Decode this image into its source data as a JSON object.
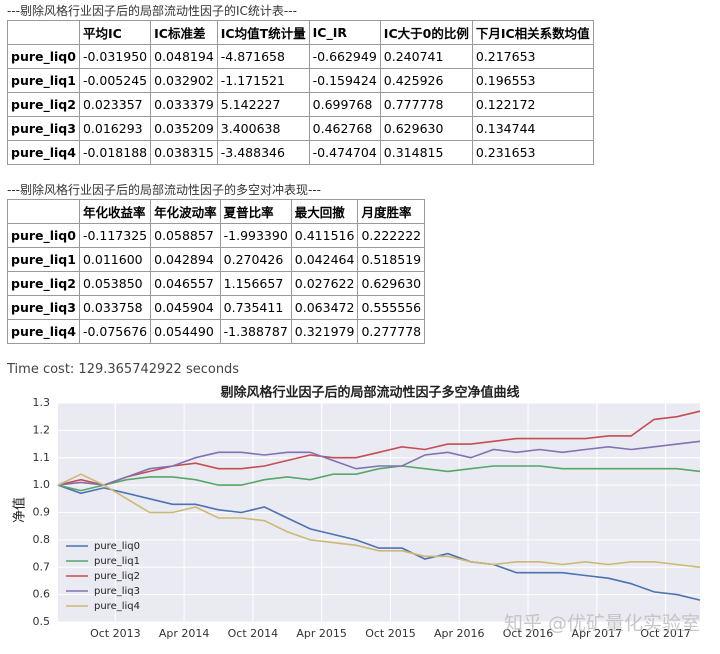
{
  "table1": {
    "caption": "---剔除风格行业因子后的局部流动性因子的IC统计表---",
    "headers": [
      "平均IC",
      "IC标准差",
      "IC均值T统计量",
      "IC_IR",
      "IC大于0的比例",
      "下月IC相关系数均值"
    ],
    "rows": [
      [
        "pure_liq0",
        "-0.031950",
        "0.048194",
        "-4.871658",
        "-0.662949",
        "0.240741",
        "0.217653"
      ],
      [
        "pure_liq1",
        "-0.005245",
        "0.032902",
        "-1.171521",
        "-0.159424",
        "0.425926",
        "0.196553"
      ],
      [
        "pure_liq2",
        "0.023357",
        "0.033379",
        "5.142227",
        "0.699768",
        "0.777778",
        "0.122172"
      ],
      [
        "pure_liq3",
        "0.016293",
        "0.035209",
        "3.400638",
        "0.462768",
        "0.629630",
        "0.134744"
      ],
      [
        "pure_liq4",
        "-0.018188",
        "0.038315",
        "-3.488346",
        "-0.474704",
        "0.314815",
        "0.231653"
      ]
    ]
  },
  "table2": {
    "caption": "---剔除风格行业因子后的局部流动性因子的多空对冲表现---",
    "headers": [
      "年化收益率",
      "年化波动率",
      "夏普比率",
      "最大回撤",
      "月度胜率"
    ],
    "rows": [
      [
        "pure_liq0",
        "-0.117325",
        "0.058857",
        "-1.993390",
        "0.411516",
        "0.222222"
      ],
      [
        "pure_liq1",
        "0.011600",
        "0.042894",
        "0.270426",
        "0.042464",
        "0.518519"
      ],
      [
        "pure_liq2",
        "0.053850",
        "0.046557",
        "1.156657",
        "0.027622",
        "0.629630"
      ],
      [
        "pure_liq3",
        "0.033758",
        "0.045904",
        "0.735411",
        "0.063472",
        "0.555556"
      ],
      [
        "pure_liq4",
        "-0.075676",
        "0.054490",
        "-1.388787",
        "0.321979",
        "0.277778"
      ]
    ]
  },
  "time_cost": "Time cost: 129.365742922 seconds",
  "watermark": "知乎 @优矿量化实验室",
  "chart_data": {
    "type": "line",
    "title": "剔除风格行业因子后的局部流动性因子多空净值曲线",
    "ylabel": "净值",
    "x": [
      "2013-05",
      "2013-07",
      "2013-09",
      "2013-11",
      "2014-01",
      "2014-03",
      "2014-05",
      "2014-07",
      "2014-09",
      "2014-11",
      "2015-01",
      "2015-03",
      "2015-05",
      "2015-07",
      "2015-09",
      "2015-11",
      "2016-01",
      "2016-03",
      "2016-05",
      "2016-07",
      "2016-09",
      "2016-11",
      "2017-01",
      "2017-03",
      "2017-05",
      "2017-07",
      "2017-09",
      "2017-11",
      "2018-01"
    ],
    "xlim": [
      "2013-05",
      "2018-01"
    ],
    "xticks": [
      {
        "value": "2013-10",
        "label": "Oct 2013"
      },
      {
        "value": "2014-04",
        "label": "Apr 2014"
      },
      {
        "value": "2014-10",
        "label": "Oct 2014"
      },
      {
        "value": "2015-04",
        "label": "Apr 2015"
      },
      {
        "value": "2015-10",
        "label": "Oct 2015"
      },
      {
        "value": "2016-04",
        "label": "Apr 2016"
      },
      {
        "value": "2016-10",
        "label": "Oct 2016"
      },
      {
        "value": "2017-04",
        "label": "Apr 2017"
      },
      {
        "value": "2017-10",
        "label": "Oct 2017"
      }
    ],
    "ylim": [
      0.5,
      1.3
    ],
    "yticks": [
      0.5,
      0.6,
      0.7,
      0.8,
      0.9,
      {
        "value": 1,
        "label": "1.0"
      },
      1.1,
      1.2,
      1.3
    ],
    "grid": true,
    "legend": "lower left",
    "series": [
      {
        "name": "pure_liq0",
        "color": "#4c72b0",
        "values": [
          1.0,
          0.97,
          0.99,
          0.97,
          0.95,
          0.93,
          0.93,
          0.91,
          0.9,
          0.92,
          0.88,
          0.84,
          0.82,
          0.8,
          0.77,
          0.77,
          0.73,
          0.75,
          0.72,
          0.71,
          0.68,
          0.68,
          0.68,
          0.67,
          0.66,
          0.64,
          0.61,
          0.6,
          0.58
        ]
      },
      {
        "name": "pure_liq1",
        "color": "#55a868",
        "values": [
          1.0,
          0.98,
          1.0,
          1.02,
          1.03,
          1.03,
          1.02,
          1.0,
          1.0,
          1.02,
          1.03,
          1.02,
          1.04,
          1.04,
          1.06,
          1.07,
          1.06,
          1.05,
          1.06,
          1.07,
          1.07,
          1.07,
          1.06,
          1.06,
          1.06,
          1.06,
          1.06,
          1.06,
          1.05
        ]
      },
      {
        "name": "pure_liq2",
        "color": "#c44e52",
        "values": [
          1.0,
          1.02,
          1.0,
          1.03,
          1.05,
          1.07,
          1.08,
          1.06,
          1.06,
          1.07,
          1.09,
          1.11,
          1.1,
          1.1,
          1.12,
          1.14,
          1.13,
          1.15,
          1.15,
          1.16,
          1.17,
          1.17,
          1.17,
          1.17,
          1.18,
          1.18,
          1.24,
          1.25,
          1.27
        ]
      },
      {
        "name": "pure_liq3",
        "color": "#8172b2",
        "values": [
          1.0,
          1.01,
          1.0,
          1.03,
          1.06,
          1.07,
          1.1,
          1.12,
          1.12,
          1.11,
          1.12,
          1.12,
          1.09,
          1.06,
          1.07,
          1.07,
          1.11,
          1.12,
          1.1,
          1.13,
          1.12,
          1.13,
          1.12,
          1.13,
          1.14,
          1.13,
          1.14,
          1.15,
          1.16
        ]
      },
      {
        "name": "pure_liq4",
        "color": "#ccb974",
        "values": [
          1.0,
          1.04,
          1.0,
          0.95,
          0.9,
          0.9,
          0.92,
          0.88,
          0.88,
          0.87,
          0.83,
          0.8,
          0.79,
          0.78,
          0.76,
          0.76,
          0.74,
          0.74,
          0.72,
          0.71,
          0.72,
          0.72,
          0.71,
          0.72,
          0.71,
          0.72,
          0.72,
          0.71,
          0.7
        ]
      }
    ]
  }
}
